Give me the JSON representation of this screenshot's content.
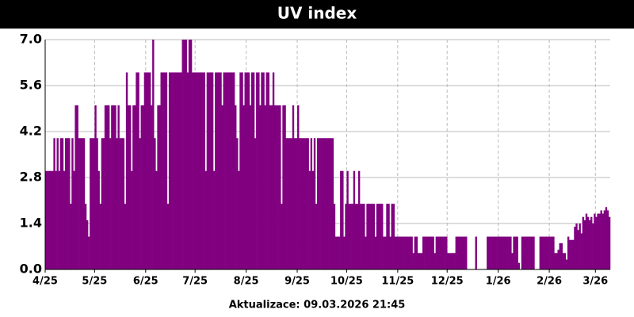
{
  "chart_data": {
    "type": "bar",
    "title": "UV index",
    "footer": "Aktualizace: 09.03.2026 21:45",
    "color": "#800080",
    "grid": true,
    "ylim": [
      0,
      7
    ],
    "yticks": [
      {
        "value": 0,
        "label": "0.0"
      },
      1.4,
      2.8,
      4.2,
      5.6,
      {
        "value": 7,
        "label": "7.0"
      }
    ],
    "categories": [
      "4/25",
      null,
      null,
      null,
      null,
      null,
      null,
      null,
      null,
      null,
      null,
      null,
      null,
      null,
      null,
      null,
      null,
      null,
      null,
      null,
      null,
      null,
      null,
      null,
      null,
      null,
      null,
      null,
      null,
      null,
      "5/25",
      null,
      null,
      null,
      null,
      null,
      null,
      null,
      null,
      null,
      null,
      null,
      null,
      null,
      null,
      null,
      null,
      null,
      null,
      null,
      null,
      null,
      null,
      null,
      null,
      null,
      null,
      null,
      null,
      null,
      null,
      "6/25",
      null,
      null,
      null,
      null,
      null,
      null,
      null,
      null,
      null,
      null,
      null,
      null,
      null,
      null,
      null,
      null,
      null,
      null,
      null,
      null,
      null,
      null,
      null,
      null,
      null,
      null,
      null,
      null,
      null,
      "7/25",
      null,
      null,
      null,
      null,
      null,
      null,
      null,
      null,
      null,
      null,
      null,
      null,
      null,
      null,
      null,
      null,
      null,
      null,
      null,
      null,
      null,
      null,
      null,
      null,
      null,
      null,
      null,
      null,
      null,
      null,
      "8/25",
      null,
      null,
      null,
      null,
      null,
      null,
      null,
      null,
      null,
      null,
      null,
      null,
      null,
      null,
      null,
      null,
      null,
      null,
      null,
      null,
      null,
      null,
      null,
      null,
      null,
      null,
      null,
      null,
      null,
      null,
      "9/25",
      null,
      null,
      null,
      null,
      null,
      null,
      null,
      null,
      null,
      null,
      null,
      null,
      null,
      null,
      null,
      null,
      null,
      null,
      null,
      null,
      null,
      null,
      null,
      null,
      null,
      null,
      null,
      null,
      null,
      "10/25",
      null,
      null,
      null,
      null,
      null,
      null,
      null,
      null,
      null,
      null,
      null,
      null,
      null,
      null,
      null,
      null,
      null,
      null,
      null,
      null,
      null,
      null,
      null,
      null,
      null,
      null,
      null,
      null,
      null,
      null,
      "11/25",
      null,
      null,
      null,
      null,
      null,
      null,
      null,
      null,
      null,
      null,
      null,
      null,
      null,
      null,
      null,
      null,
      null,
      null,
      null,
      null,
      null,
      null,
      null,
      null,
      null,
      null,
      null,
      null,
      null,
      "12/25",
      null,
      null,
      null,
      null,
      null,
      null,
      null,
      null,
      null,
      null,
      null,
      null,
      null,
      null,
      null,
      null,
      null,
      null,
      null,
      null,
      null,
      null,
      null,
      null,
      null,
      null,
      null,
      null,
      null,
      null,
      "1/26",
      null,
      null,
      null,
      null,
      null,
      null,
      null,
      null,
      null,
      null,
      null,
      null,
      null,
      null,
      null,
      null,
      null,
      null,
      null,
      null,
      null,
      null,
      null,
      null,
      null,
      null,
      null,
      null,
      null,
      null,
      "2/26",
      null,
      null,
      null,
      null,
      null,
      null,
      null,
      null,
      null,
      null,
      null,
      null,
      null,
      null,
      null,
      null,
      null,
      null,
      null,
      null,
      null,
      null,
      null,
      null,
      null,
      null,
      null,
      "3/26",
      null,
      null,
      null,
      null,
      null,
      null,
      null,
      null
    ],
    "values": [
      3,
      3,
      3,
      3,
      3,
      4,
      3,
      4,
      3,
      4,
      4,
      3,
      4,
      4,
      4,
      2,
      4,
      3,
      5,
      5,
      4,
      4,
      4,
      4,
      2,
      1.5,
      1,
      4,
      4,
      4,
      5,
      4,
      3,
      2,
      4,
      4,
      5,
      5,
      5,
      4,
      5,
      5,
      5,
      4,
      5,
      4,
      4,
      4,
      2,
      6,
      5,
      5,
      3,
      5,
      5,
      6,
      6,
      4,
      5,
      5,
      6,
      6,
      6,
      6,
      5,
      7,
      4,
      3,
      5,
      5,
      6,
      6,
      6,
      6,
      2,
      6,
      6,
      6,
      6,
      6,
      6,
      6,
      6,
      7,
      7,
      7,
      6,
      7,
      7,
      6,
      6,
      6,
      6,
      6,
      6,
      6,
      6,
      3,
      6,
      6,
      6,
      6,
      3,
      6,
      6,
      6,
      6,
      5,
      6,
      6,
      6,
      6,
      6,
      6,
      6,
      5,
      4,
      3,
      6,
      6,
      5,
      6,
      6,
      6,
      5,
      6,
      6,
      4,
      6,
      6,
      5,
      6,
      6,
      5,
      6,
      6,
      5,
      5,
      6,
      5,
      5,
      5,
      5,
      2,
      5,
      5,
      4,
      4,
      4,
      4,
      5,
      4,
      4,
      5,
      4,
      4,
      4,
      4,
      4,
      4,
      3,
      4,
      3,
      4,
      2,
      4,
      4,
      4,
      4,
      4,
      4,
      4,
      4,
      4,
      4,
      2,
      1,
      1,
      1,
      3,
      3,
      1,
      2,
      3,
      2,
      2,
      2,
      3,
      2,
      2,
      3,
      2,
      2,
      2,
      1,
      2,
      2,
      2,
      2,
      2,
      1,
      2,
      2,
      2,
      2,
      1,
      1,
      2,
      2,
      1,
      2,
      2,
      1,
      1,
      1,
      1,
      1,
      1,
      1,
      1,
      1,
      1,
      1,
      0.5,
      1,
      1,
      0.5,
      0.5,
      0.5,
      1,
      1,
      1,
      1,
      1,
      1,
      1,
      0.5,
      1,
      1,
      1,
      1,
      1,
      1,
      1,
      0.5,
      0.5,
      0.5,
      0.5,
      0.5,
      1,
      1,
      1,
      1,
      1,
      1,
      1,
      0,
      0,
      0,
      0,
      0,
      1,
      0,
      0,
      0,
      0,
      0,
      0,
      1,
      1,
      1,
      1,
      1,
      1,
      1,
      1,
      1,
      1,
      1,
      1,
      1,
      1,
      1,
      0.5,
      1,
      1,
      1,
      0.2,
      0,
      1,
      1,
      1,
      1,
      1,
      1,
      1,
      1,
      0,
      0,
      0,
      1,
      1,
      1,
      1,
      1,
      1,
      1,
      1,
      1,
      0.5,
      0.5,
      0.6,
      0.8,
      0.8,
      0.5,
      0.5,
      0.3,
      1,
      0.9,
      0.9,
      0.9,
      1.3,
      1.4,
      1.2,
      1.4,
      1.1,
      1.6,
      1.5,
      1.7,
      1.6,
      1.5,
      1.6,
      1.4,
      1.7,
      1.6,
      1.7,
      1.7,
      1.8,
      1.7,
      1.8,
      1.9,
      1.8,
      1.6
    ]
  }
}
